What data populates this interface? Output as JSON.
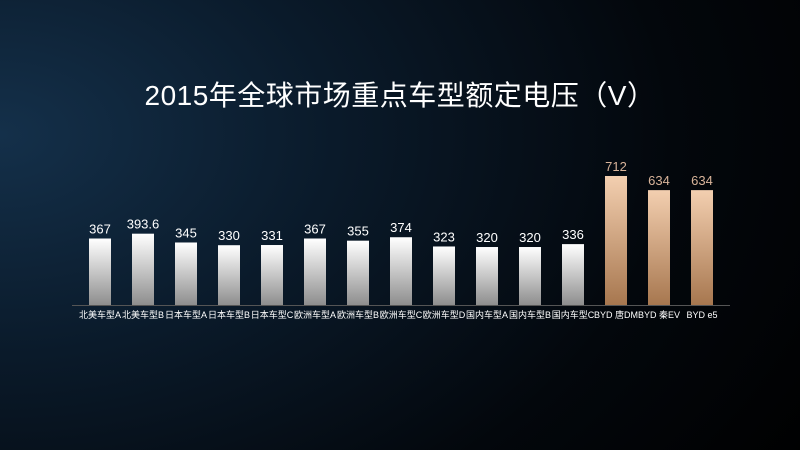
{
  "chart_data": {
    "type": "bar",
    "title": "2015年全球市场重点车型额定电压（V）",
    "categories": [
      "北美车型A",
      "北美车型B",
      "日本车型A",
      "日本车型B",
      "日本车型C",
      "欧洲车型A",
      "欧洲车型B",
      "欧洲车型C",
      "欧洲车型D",
      "国内车型A",
      "国内车型B",
      "国内车型C",
      "BYD 唐DM",
      "BYD 秦EV",
      "BYD e5"
    ],
    "values": [
      367,
      393.6,
      345,
      330,
      331,
      367,
      355,
      374,
      323,
      320,
      320,
      336,
      712,
      634,
      634
    ],
    "value_labels": [
      "367",
      "393.6",
      "345",
      "330",
      "331",
      "367",
      "355",
      "374",
      "323",
      "320",
      "320",
      "336",
      "712",
      "634",
      "634"
    ],
    "highlighted": [
      false,
      false,
      false,
      false,
      false,
      false,
      false,
      false,
      false,
      false,
      false,
      false,
      true,
      true,
      true
    ],
    "ylim": [
      0,
      712
    ],
    "grid": false,
    "legend": "none",
    "colors": {
      "default_bar": "#ffffff",
      "highlight_bar": "#e8b98f",
      "highlight_label": "#d9b49a",
      "label": "#ffffff"
    }
  }
}
